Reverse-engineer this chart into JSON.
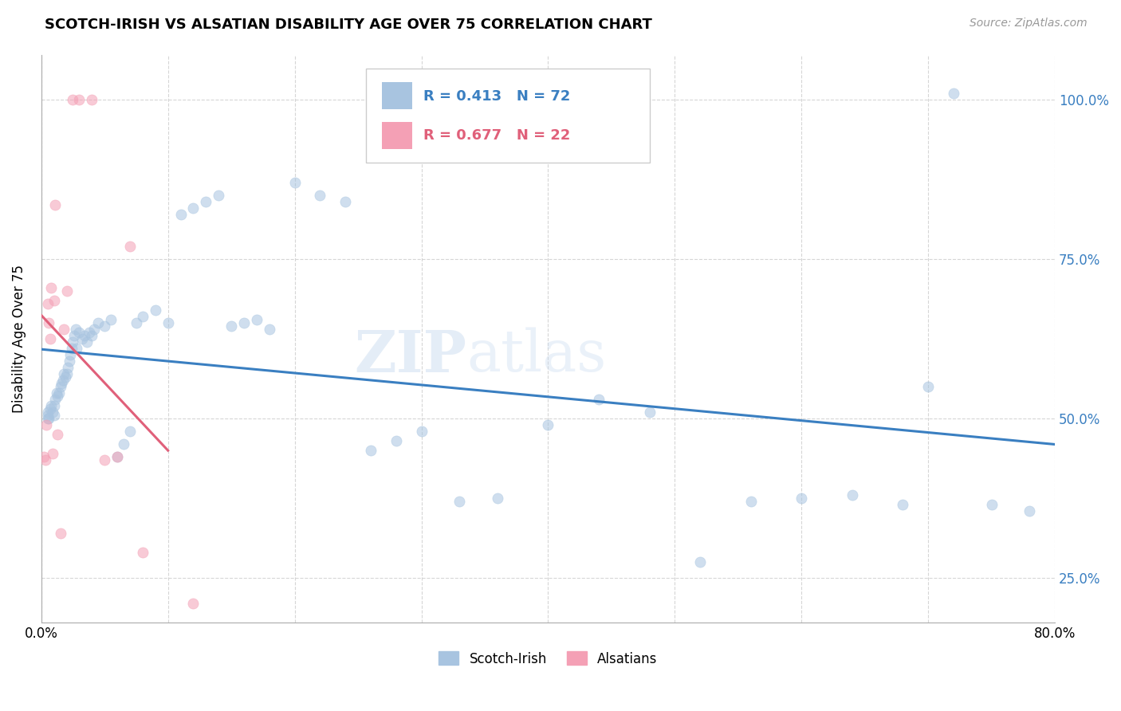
{
  "title": "SCOTCH-IRISH VS ALSATIAN DISABILITY AGE OVER 75 CORRELATION CHART",
  "source": "Source: ZipAtlas.com",
  "ylabel": "Disability Age Over 75",
  "watermark": "ZIPatlas",
  "legend_entries": [
    {
      "label": "Scotch-Irish",
      "R": "0.413",
      "N": "72"
    },
    {
      "label": "Alsatians",
      "R": "0.677",
      "N": "22"
    }
  ],
  "scotch_irish_x": [
    0.5,
    0.5,
    0.5,
    0.6,
    0.7,
    0.8,
    0.9,
    1.0,
    1.0,
    1.1,
    1.2,
    1.3,
    1.4,
    1.5,
    1.6,
    1.7,
    1.8,
    1.9,
    2.0,
    2.1,
    2.2,
    2.3,
    2.4,
    2.5,
    2.6,
    2.7,
    2.8,
    3.0,
    3.2,
    3.4,
    3.6,
    3.8,
    4.0,
    4.2,
    4.5,
    5.0,
    5.5,
    6.0,
    6.5,
    7.0,
    7.5,
    8.0,
    9.0,
    10.0,
    11.0,
    12.0,
    13.0,
    14.0,
    15.0,
    16.0,
    17.0,
    18.0,
    20.0,
    22.0,
    24.0,
    26.0,
    28.0,
    30.0,
    33.0,
    36.0,
    40.0,
    44.0,
    48.0,
    52.0,
    56.0,
    60.0,
    64.0,
    68.0,
    70.0,
    72.0,
    75.0,
    78.0
  ],
  "scotch_irish_y": [
    50.0,
    50.5,
    51.0,
    50.0,
    51.5,
    52.0,
    51.0,
    52.0,
    50.5,
    53.0,
    54.0,
    53.5,
    54.0,
    55.0,
    55.5,
    56.0,
    57.0,
    56.5,
    57.0,
    58.0,
    59.0,
    60.0,
    61.0,
    62.0,
    63.0,
    64.0,
    61.0,
    63.5,
    62.5,
    63.0,
    62.0,
    63.5,
    63.0,
    64.0,
    65.0,
    64.5,
    65.5,
    44.0,
    46.0,
    48.0,
    65.0,
    66.0,
    67.0,
    65.0,
    82.0,
    83.0,
    84.0,
    85.0,
    64.5,
    65.0,
    65.5,
    64.0,
    87.0,
    85.0,
    84.0,
    45.0,
    46.5,
    48.0,
    37.0,
    37.5,
    49.0,
    53.0,
    51.0,
    27.5,
    37.0,
    37.5,
    38.0,
    36.5,
    55.0,
    101.0,
    36.5,
    35.5
  ],
  "alsatian_x": [
    0.2,
    0.3,
    0.4,
    0.5,
    0.6,
    0.7,
    0.8,
    0.9,
    1.0,
    1.1,
    1.3,
    1.5,
    1.8,
    2.0,
    2.5,
    3.0,
    4.0,
    5.0,
    6.0,
    7.0,
    8.0,
    12.0
  ],
  "alsatian_y": [
    44.0,
    43.5,
    49.0,
    68.0,
    65.0,
    62.5,
    70.5,
    44.5,
    68.5,
    83.5,
    47.5,
    32.0,
    64.0,
    70.0,
    100.0,
    100.0,
    100.0,
    43.5,
    44.0,
    77.0,
    29.0,
    21.0
  ],
  "xmin": 0.0,
  "xmax": 80.0,
  "ymin": 18.0,
  "ymax": 107.0,
  "yticks": [
    25.0,
    50.0,
    75.0,
    100.0
  ],
  "ytick_labels": [
    "25.0%",
    "50.0%",
    "75.0%",
    "100.0%"
  ],
  "xtick_left_label": "0.0%",
  "xtick_right_label": "80.0%",
  "scatter_size": 90,
  "scatter_alpha": 0.55,
  "scotch_irish_line_color": "#3a7fc1",
  "alsatian_line_color": "#e0607a",
  "scotch_irish_scatter_color": "#a8c4e0",
  "alsatian_scatter_color": "#f4a0b5",
  "grid_color": "#cccccc",
  "grid_linestyle": "--",
  "grid_alpha": 0.8
}
